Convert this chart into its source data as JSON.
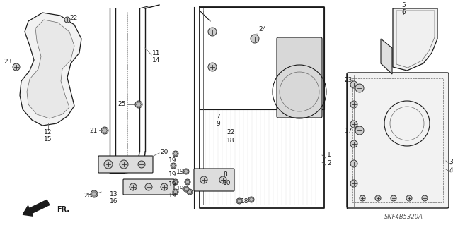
{
  "bg_color": "#ffffff",
  "dark": "#1a1a1a",
  "gray": "#666666",
  "light_gray": "#e8e8e8",
  "med_gray": "#aaaaaa",
  "watermark": "SNF4B5320A"
}
